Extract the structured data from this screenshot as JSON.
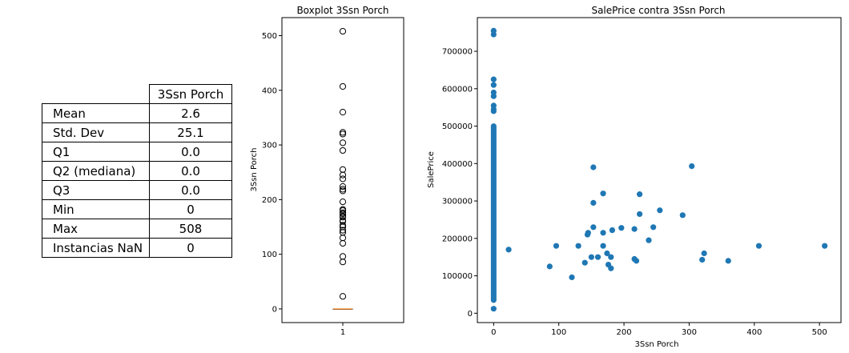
{
  "stats_table": {
    "column_header": "3Ssn Porch",
    "rows": [
      {
        "label": "Mean",
        "value": "2.6"
      },
      {
        "label": "Std. Dev",
        "value": "25.1"
      },
      {
        "label": "Q1",
        "value": "0.0"
      },
      {
        "label": "Q2 (mediana)",
        "value": "0.0"
      },
      {
        "label": "Q3",
        "value": "0.0"
      },
      {
        "label": "Min",
        "value": "0"
      },
      {
        "label": "Max",
        "value": "508"
      },
      {
        "label": "Instancias NaN",
        "value": "0"
      }
    ]
  },
  "chart_data": [
    {
      "type": "boxplot",
      "title": "Boxplot 3Ssn Porch",
      "xlabel": "",
      "ylabel": "3Ssn Porch",
      "categories": [
        "1"
      ],
      "ylim": [
        -25,
        533
      ],
      "yticks": [
        0,
        100,
        200,
        300,
        400,
        500
      ],
      "median": 0,
      "q1": 0,
      "q3": 0,
      "whisker_low": 0,
      "whisker_high": 0,
      "outliers": [
        23,
        86,
        96,
        120,
        130,
        140,
        144,
        150,
        153,
        160,
        162,
        168,
        170,
        174,
        176,
        180,
        182,
        196,
        216,
        219,
        224,
        238,
        245,
        255,
        290,
        304,
        320,
        323,
        360,
        407,
        508
      ],
      "median_color": "#ff7f0e"
    },
    {
      "type": "scatter",
      "title": "SalePrice contra 3Ssn Porch",
      "xlabel": "3Ssn Porch",
      "ylabel": "SalePrice",
      "xlim": [
        -25,
        533
      ],
      "ylim": [
        -25000,
        790000
      ],
      "xticks": [
        0,
        100,
        200,
        300,
        400,
        500
      ],
      "yticks": [
        0,
        100000,
        200000,
        300000,
        400000,
        500000,
        600000,
        700000
      ],
      "color": "#1f77b4",
      "zero_column": {
        "x": 0,
        "y_min": 35000,
        "y_max": 500000
      },
      "points": [
        [
          0,
          12000
        ],
        [
          0,
          540000
        ],
        [
          0,
          545000
        ],
        [
          0,
          555000
        ],
        [
          0,
          580000
        ],
        [
          0,
          590000
        ],
        [
          0,
          610000
        ],
        [
          0,
          625000
        ],
        [
          0,
          745000
        ],
        [
          0,
          755000
        ],
        [
          23,
          170000
        ],
        [
          86,
          125000
        ],
        [
          96,
          180000
        ],
        [
          120,
          96000
        ],
        [
          130,
          180000
        ],
        [
          140,
          135000
        ],
        [
          144,
          210000
        ],
        [
          145,
          215000
        ],
        [
          150,
          150000
        ],
        [
          153,
          390000
        ],
        [
          153,
          295000
        ],
        [
          153,
          230000
        ],
        [
          160,
          150000
        ],
        [
          168,
          320000
        ],
        [
          168,
          215000
        ],
        [
          168,
          180000
        ],
        [
          174,
          160000
        ],
        [
          176,
          130000
        ],
        [
          180,
          150000
        ],
        [
          180,
          120000
        ],
        [
          182,
          222000
        ],
        [
          196,
          228000
        ],
        [
          216,
          225000
        ],
        [
          216,
          145000
        ],
        [
          219,
          140000
        ],
        [
          224,
          318000
        ],
        [
          224,
          265000
        ],
        [
          238,
          195000
        ],
        [
          245,
          230000
        ],
        [
          255,
          275000
        ],
        [
          290,
          262000
        ],
        [
          304,
          393000
        ],
        [
          320,
          143000
        ],
        [
          323,
          160000
        ],
        [
          360,
          140000
        ],
        [
          407,
          180000
        ],
        [
          508,
          180000
        ]
      ]
    }
  ]
}
